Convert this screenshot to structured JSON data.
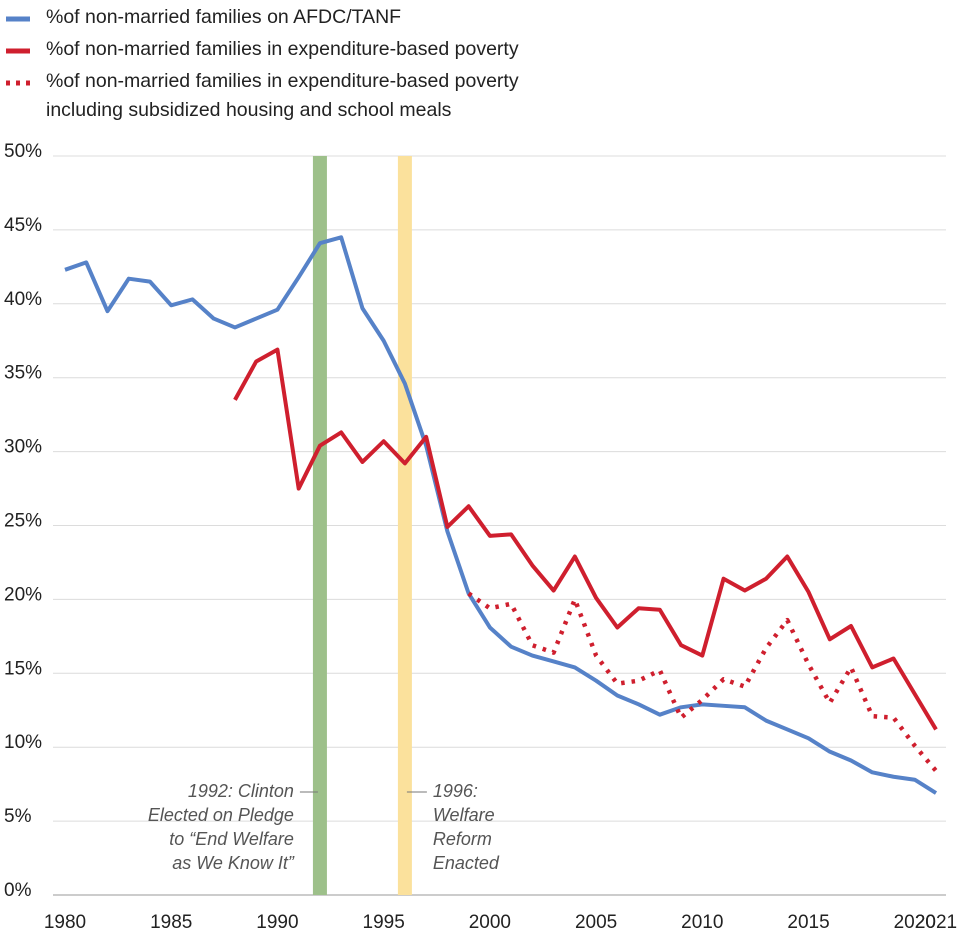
{
  "chart_data": {
    "type": "line",
    "x": [
      1980,
      1981,
      1982,
      1983,
      1984,
      1985,
      1986,
      1987,
      1988,
      1989,
      1990,
      1991,
      1992,
      1993,
      1994,
      1995,
      1996,
      1997,
      1998,
      1999,
      2000,
      2001,
      2002,
      2003,
      2004,
      2005,
      2006,
      2007,
      2008,
      2009,
      2010,
      2011,
      2012,
      2013,
      2014,
      2015,
      2016,
      2017,
      2018,
      2019,
      2020,
      2021
    ],
    "series": [
      {
        "name": "%of non-married families on AFDC/TANF",
        "color": "#5682c8",
        "style": "solid",
        "values": [
          42.3,
          42.8,
          39.5,
          41.7,
          41.5,
          39.9,
          40.3,
          39.0,
          38.4,
          39.0,
          39.6,
          41.8,
          44.1,
          44.5,
          39.7,
          37.5,
          34.6,
          30.4,
          24.6,
          20.4,
          18.1,
          16.8,
          16.2,
          15.8,
          15.4,
          14.5,
          13.5,
          12.9,
          12.2,
          12.7,
          12.9,
          12.8,
          12.7,
          11.8,
          11.2,
          10.6,
          9.7,
          9.1,
          8.3,
          8.0,
          7.8,
          6.9
        ]
      },
      {
        "name": "%of non-married families in expenditure-based poverty",
        "color": "#cf1f2e",
        "style": "solid",
        "values": [
          null,
          null,
          null,
          null,
          null,
          null,
          null,
          null,
          33.5,
          36.1,
          36.9,
          27.5,
          30.4,
          31.3,
          29.3,
          30.7,
          29.2,
          31.0,
          24.9,
          26.3,
          24.3,
          24.4,
          22.3,
          20.6,
          22.9,
          20.1,
          18.1,
          19.4,
          19.3,
          16.9,
          16.2,
          21.4,
          20.6,
          21.4,
          22.9,
          20.5,
          17.3,
          18.2,
          15.4,
          16.0,
          13.6,
          11.2
        ]
      },
      {
        "name": "%of non-married families in expenditure-based poverty including subsidized housing and school meals",
        "color": "#cf1f2e",
        "style": "dotted",
        "values": [
          null,
          null,
          null,
          null,
          null,
          null,
          null,
          null,
          null,
          null,
          null,
          null,
          null,
          null,
          null,
          null,
          null,
          null,
          null,
          20.4,
          19.4,
          19.7,
          16.9,
          16.4,
          20.0,
          16.2,
          14.3,
          14.5,
          15.2,
          12.0,
          13.2,
          14.6,
          14.1,
          16.7,
          18.6,
          15.6,
          13.0,
          15.4,
          12.1,
          12.0,
          10.1,
          8.4
        ]
      }
    ],
    "xlim": [
      1980,
      2021
    ],
    "xticks": [
      1980,
      1985,
      1990,
      1995,
      2000,
      2005,
      2010,
      2015,
      2020,
      2021
    ],
    "ylim": [
      0,
      50
    ],
    "yticks": [
      {
        "value": 0,
        "label": "0%"
      },
      {
        "value": 5,
        "label": "5%"
      },
      {
        "value": 10,
        "label": "10%"
      },
      {
        "value": 15,
        "label": "15%"
      },
      {
        "value": 20,
        "label": "20%"
      },
      {
        "value": 25,
        "label": "25%"
      },
      {
        "value": 30,
        "label": "30%"
      },
      {
        "value": 35,
        "label": "35%"
      },
      {
        "value": 40,
        "label": "40%"
      },
      {
        "value": 45,
        "label": "45%"
      },
      {
        "value": 50,
        "label": "50%"
      }
    ],
    "grid": true,
    "annotations": [
      {
        "x": 1992,
        "color": "#9dc08a",
        "side": "left",
        "lines": [
          "1992: Clinton",
          "Elected on Pledge",
          "to “End Welfare",
          "as We Know It”"
        ]
      },
      {
        "x": 1996,
        "color": "#fbe19c",
        "side": "right",
        "lines": [
          "1996:",
          "Welfare",
          "Reform",
          "Enacted"
        ]
      }
    ]
  }
}
